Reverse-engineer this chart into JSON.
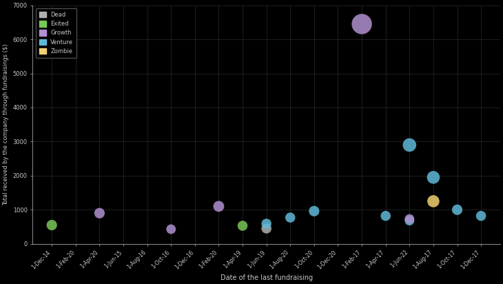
{
  "xlabel": "Date of the last fundraising",
  "ylabel": "Total received by the company through fundraisings ($)",
  "background_color": "#000000",
  "text_color": "#c8c8c8",
  "grid_color": "#2a2a2a",
  "categories": {
    "Dead": {
      "color": "#b0b0b0"
    },
    "Exited": {
      "color": "#7ac858"
    },
    "Growth": {
      "color": "#b090d0"
    },
    "Venture": {
      "color": "#60b8d8"
    },
    "Zombie": {
      "color": "#f0d070"
    }
  },
  "x_labels": [
    "1-Dec-14",
    "1-Feb-20",
    "1-Apr-20",
    "1-Jun-15",
    "1-Aug-16",
    "1-Oct-16",
    "1-Dec-16",
    "1-Feb-20",
    "1-Apr-19",
    "1-Jun-19",
    "1-Aug-20",
    "1-Oct-20",
    "1-Dec-20",
    "1-Feb-17",
    "1-Apr-17",
    "1-Jun-22",
    "1-Aug-17",
    "1-Oct-17",
    "1-Dec-17"
  ],
  "points": [
    {
      "xi": 0,
      "value": 550,
      "type": "Exited",
      "size": 120
    },
    {
      "xi": 2,
      "value": 900,
      "type": "Growth",
      "size": 120
    },
    {
      "xi": 5,
      "value": 430,
      "type": "Growth",
      "size": 100
    },
    {
      "xi": 7,
      "value": 1100,
      "type": "Growth",
      "size": 130
    },
    {
      "xi": 8,
      "value": 530,
      "type": "Exited",
      "size": 110
    },
    {
      "xi": 9,
      "value": 450,
      "type": "Dead",
      "size": 110
    },
    {
      "xi": 9,
      "value": 590,
      "type": "Venture",
      "size": 110
    },
    {
      "xi": 10,
      "value": 770,
      "type": "Venture",
      "size": 110
    },
    {
      "xi": 11,
      "value": 960,
      "type": "Venture",
      "size": 120
    },
    {
      "xi": 13,
      "value": 6450,
      "type": "Growth",
      "size": 450
    },
    {
      "xi": 14,
      "value": 820,
      "type": "Venture",
      "size": 110
    },
    {
      "xi": 15,
      "value": 2900,
      "type": "Venture",
      "size": 200
    },
    {
      "xi": 15,
      "value": 680,
      "type": "Venture",
      "size": 100
    },
    {
      "xi": 15,
      "value": 730,
      "type": "Growth",
      "size": 100
    },
    {
      "xi": 16,
      "value": 1250,
      "type": "Zombie",
      "size": 160
    },
    {
      "xi": 16,
      "value": 1950,
      "type": "Venture",
      "size": 180
    },
    {
      "xi": 17,
      "value": 1000,
      "type": "Venture",
      "size": 120
    },
    {
      "xi": 18,
      "value": 820,
      "type": "Venture",
      "size": 110
    }
  ],
  "ylim": [
    0,
    7000
  ],
  "yticks": [
    0,
    1000,
    2000,
    3000,
    4000,
    5000,
    6000,
    7000
  ]
}
